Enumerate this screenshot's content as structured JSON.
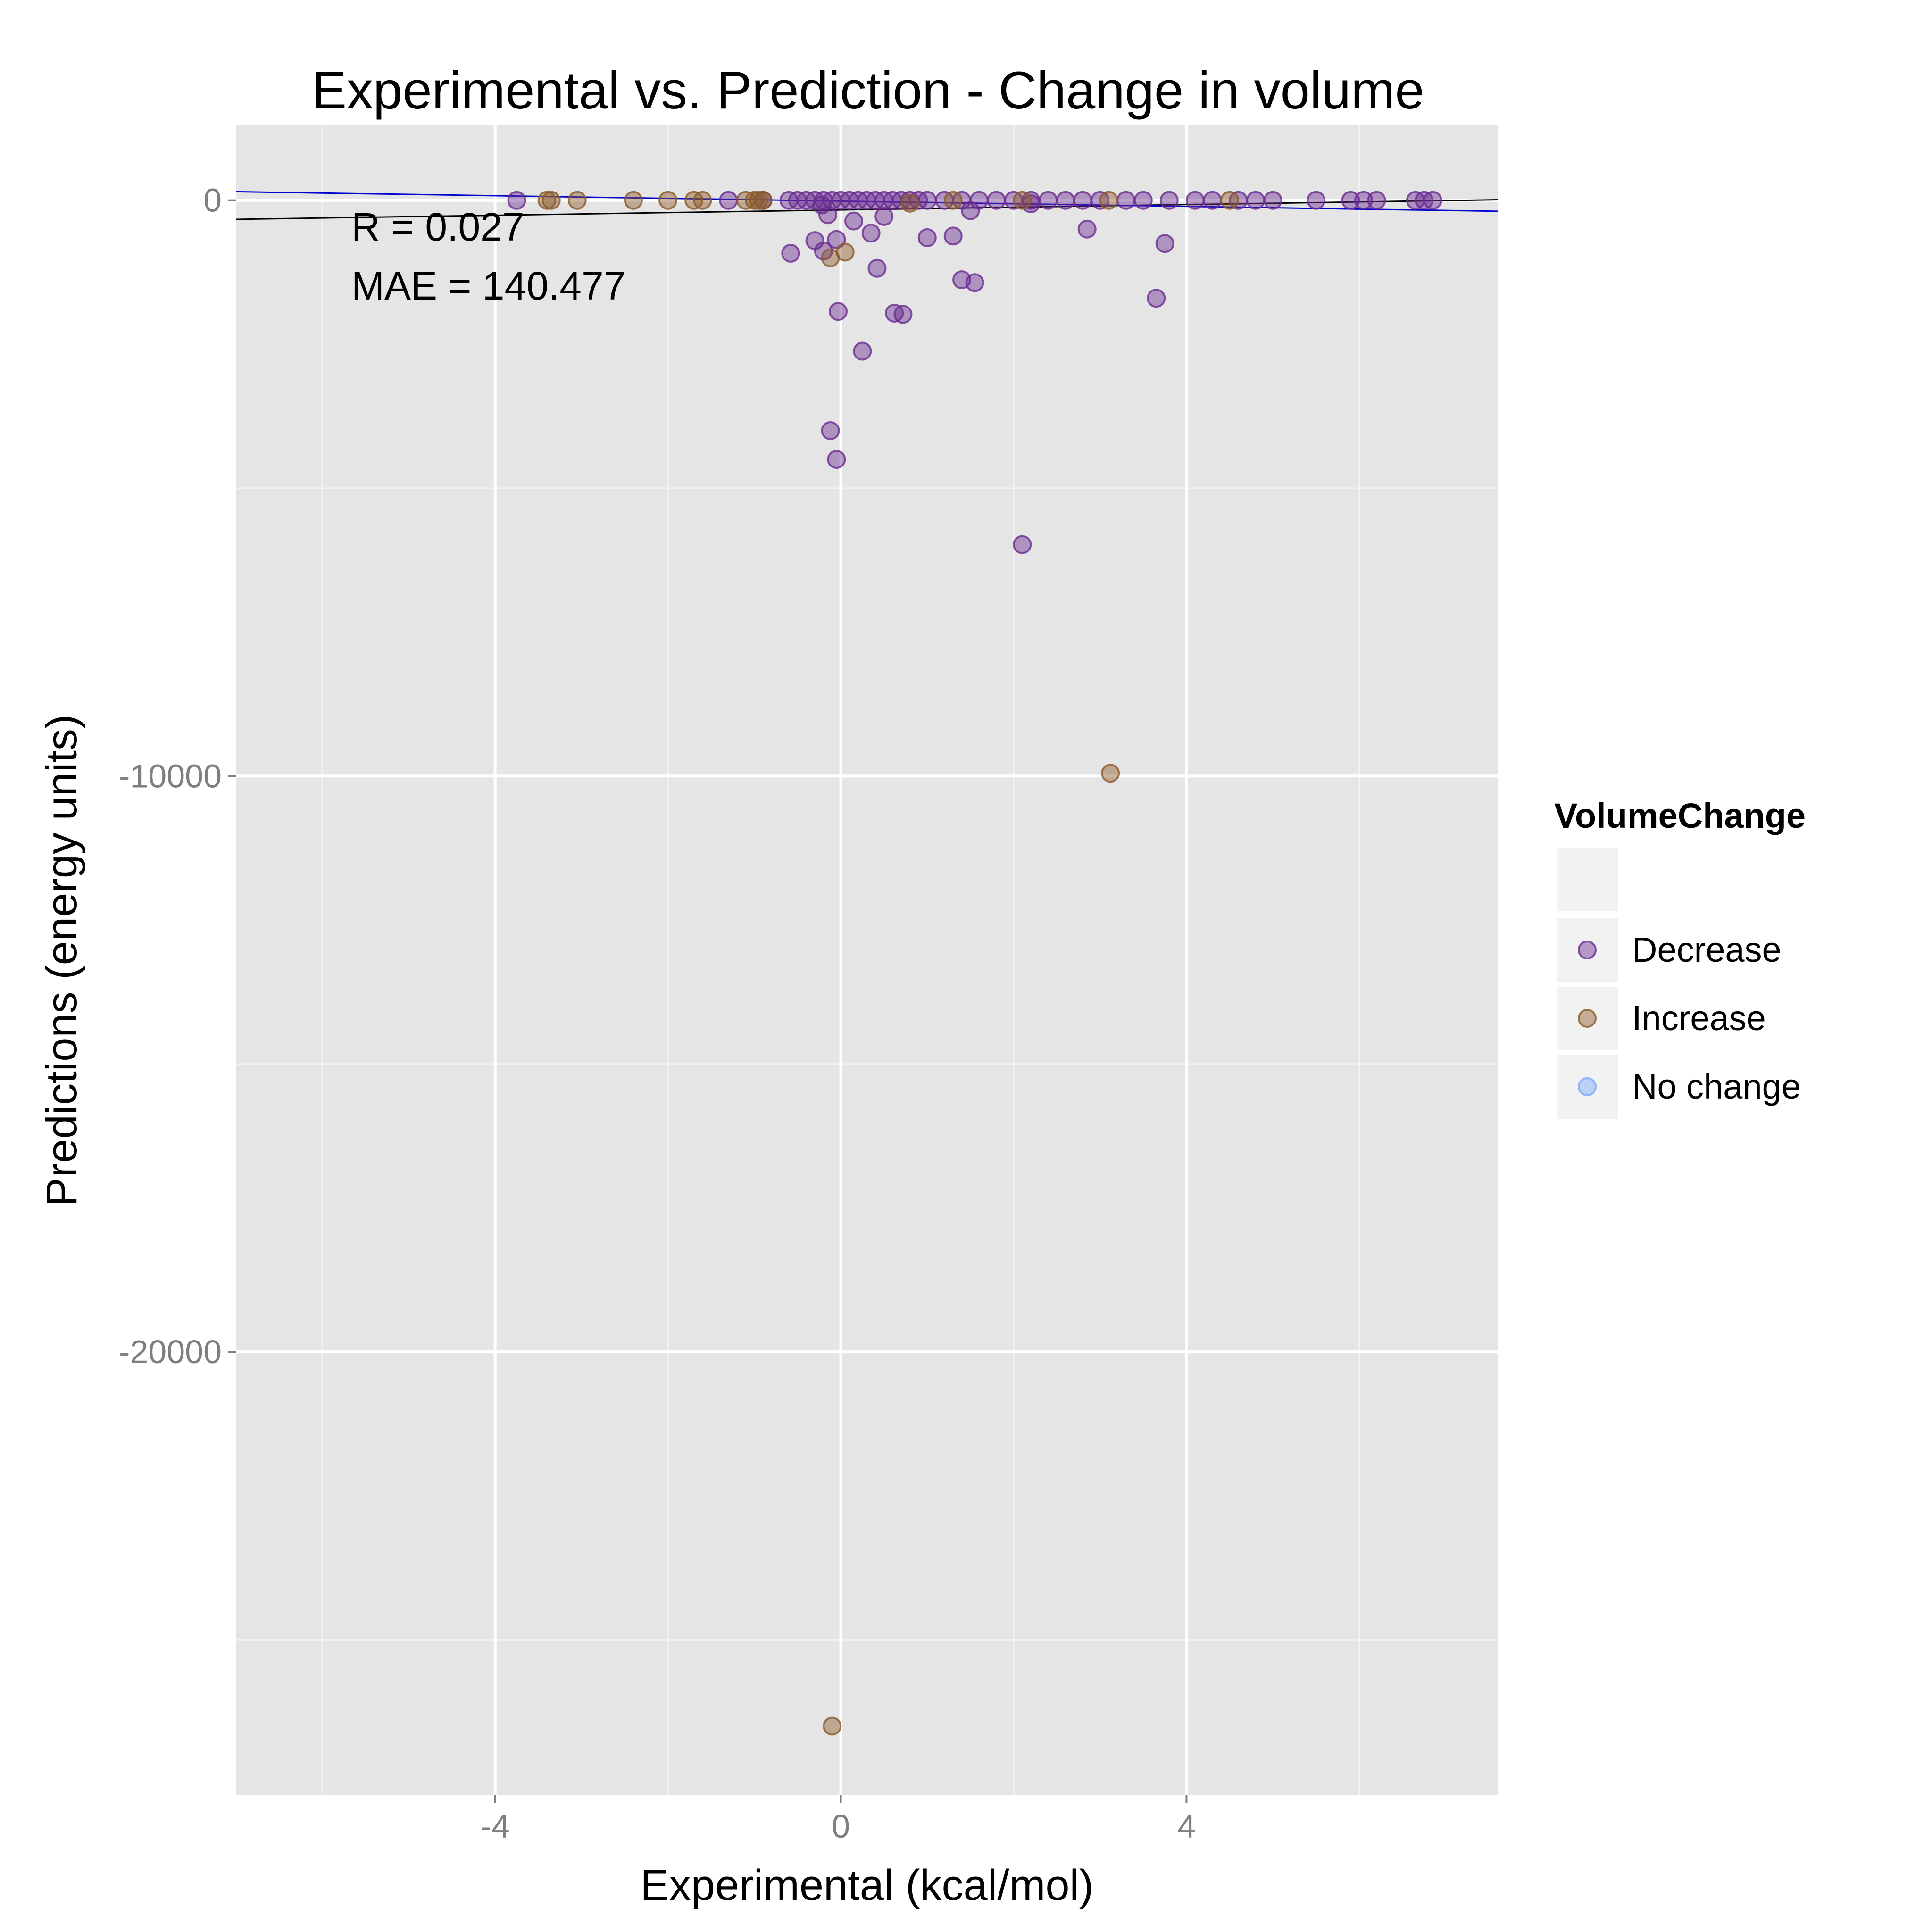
{
  "chart_data": {
    "type": "scatter",
    "title": "Experimental vs. Prediction - Change in volume",
    "xlabel": "Experimental (kcal/mol)",
    "ylabel": "Predictions (energy units)",
    "xlim": [
      -7,
      7.6
    ],
    "ylim": [
      -27700,
      1300
    ],
    "x_ticks": [
      -4,
      0,
      4
    ],
    "x_tick_labels": [
      "-4",
      "0",
      "4"
    ],
    "y_ticks": [
      0,
      -10000,
      -20000
    ],
    "y_tick_labels": [
      "0",
      "-10000",
      "-20000"
    ],
    "grid": true,
    "legend": {
      "title": "VolumeChange",
      "position": "right",
      "entries": [
        {
          "label": "Decrease",
          "color": "#6A2C91"
        },
        {
          "label": "Increase",
          "color": "#8B5A2B"
        },
        {
          "label": "No change",
          "color": "#7AA7FF"
        }
      ]
    },
    "annotations": [
      "R = 0.027",
      "MAE = 140.477"
    ],
    "fit_lines": [
      {
        "color": "#000000",
        "x": [
          -7,
          7.6
        ],
        "y": [
          -330,
          10
        ]
      },
      {
        "color": "#0000cc",
        "x": [
          -7,
          7.6
        ],
        "y": [
          150,
          -190
        ]
      }
    ],
    "series": [
      {
        "name": "Decrease",
        "color": "#6A2C91",
        "points": [
          [
            -3.75,
            0
          ],
          [
            -1.3,
            0
          ],
          [
            -0.9,
            0
          ],
          [
            -0.6,
            0
          ],
          [
            -0.5,
            0
          ],
          [
            -0.4,
            0
          ],
          [
            -0.3,
            0
          ],
          [
            -0.2,
            0
          ],
          [
            -0.1,
            0
          ],
          [
            0,
            0
          ],
          [
            0.1,
            0
          ],
          [
            0.2,
            0
          ],
          [
            0.3,
            0
          ],
          [
            0.4,
            0
          ],
          [
            0.5,
            0
          ],
          [
            0.6,
            0
          ],
          [
            0.7,
            0
          ],
          [
            0.8,
            0
          ],
          [
            0.9,
            0
          ],
          [
            1.0,
            0
          ],
          [
            1.2,
            0
          ],
          [
            1.4,
            0
          ],
          [
            1.6,
            0
          ],
          [
            1.8,
            0
          ],
          [
            2.0,
            0
          ],
          [
            2.2,
            0
          ],
          [
            2.4,
            0
          ],
          [
            2.6,
            0
          ],
          [
            2.8,
            0
          ],
          [
            3.0,
            0
          ],
          [
            3.3,
            0
          ],
          [
            3.5,
            0
          ],
          [
            3.8,
            0
          ],
          [
            4.1,
            0
          ],
          [
            4.3,
            0
          ],
          [
            4.6,
            0
          ],
          [
            4.8,
            0
          ],
          [
            5.0,
            0
          ],
          [
            5.5,
            0
          ],
          [
            5.9,
            0
          ],
          [
            6.05,
            0
          ],
          [
            6.2,
            0
          ],
          [
            6.65,
            0
          ],
          [
            6.75,
            0
          ],
          [
            6.85,
            0
          ],
          [
            -0.22,
            -80
          ],
          [
            -0.15,
            -250
          ],
          [
            0.15,
            -360
          ],
          [
            0.5,
            -280
          ],
          [
            1.5,
            -180
          ],
          [
            2.2,
            -60
          ],
          [
            -0.3,
            -700
          ],
          [
            -0.05,
            -680
          ],
          [
            0.35,
            -570
          ],
          [
            1.3,
            -620
          ],
          [
            1.0,
            -650
          ],
          [
            2.85,
            -500
          ],
          [
            3.75,
            -750
          ],
          [
            -0.58,
            -920
          ],
          [
            -0.2,
            -880
          ],
          [
            0.42,
            -1180
          ],
          [
            1.4,
            -1380
          ],
          [
            1.55,
            -1430
          ],
          [
            3.65,
            -1700
          ],
          [
            -0.03,
            -1930
          ],
          [
            0.62,
            -1960
          ],
          [
            0.72,
            -1980
          ],
          [
            0.25,
            -2620
          ],
          [
            -0.12,
            -4000
          ],
          [
            -0.05,
            -4500
          ],
          [
            2.1,
            -5980
          ]
        ]
      },
      {
        "name": "Increase",
        "color": "#8B5A2B",
        "points": [
          [
            -3.4,
            0
          ],
          [
            -3.35,
            0
          ],
          [
            -3.05,
            0
          ],
          [
            -2.4,
            0
          ],
          [
            -2.0,
            0
          ],
          [
            -1.7,
            0
          ],
          [
            -1.6,
            0
          ],
          [
            -1.1,
            0
          ],
          [
            -1.0,
            0
          ],
          [
            -0.95,
            0
          ],
          [
            -0.9,
            0
          ],
          [
            0.8,
            -50
          ],
          [
            1.3,
            0
          ],
          [
            2.1,
            0
          ],
          [
            3.1,
            0
          ],
          [
            4.5,
            0
          ],
          [
            0.05,
            -900
          ],
          [
            -0.12,
            -1000
          ],
          [
            3.12,
            -9950
          ],
          [
            -0.1,
            -26500
          ]
        ]
      },
      {
        "name": "No change",
        "color": "#7AA7FF",
        "points": []
      }
    ]
  }
}
